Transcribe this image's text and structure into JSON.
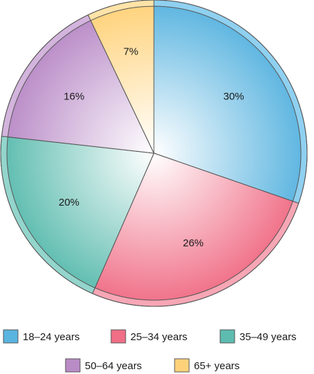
{
  "chart_data": {
    "type": "pie",
    "start_angle_deg": 0,
    "direction": "clockwise",
    "slices": [
      {
        "name": "18–24 years",
        "value": 30,
        "label": "30%",
        "color": "#5ab4e0",
        "rim": "#8fd0f0"
      },
      {
        "name": "25–34 years",
        "value": 26,
        "label": "26%",
        "color": "#f06e86",
        "rim": "#f7a6b5"
      },
      {
        "name": "35–49 years",
        "value": 20,
        "label": "20%",
        "color": "#5dbcaf",
        "rim": "#93d5cc"
      },
      {
        "name": "50–64 years",
        "value": 16,
        "label": "16%",
        "color": "#b98bc7",
        "rim": "#d3b4dd"
      },
      {
        "name": "65+ years",
        "value": 7,
        "label": "7%",
        "color": "#ffd27a",
        "rim": "#ffe3a8"
      }
    ],
    "legend": {
      "placement": "bottom",
      "entries": [
        "18–24 years",
        "25–34 years",
        "35–49 years",
        "50–64 years",
        "65+ years"
      ]
    }
  }
}
